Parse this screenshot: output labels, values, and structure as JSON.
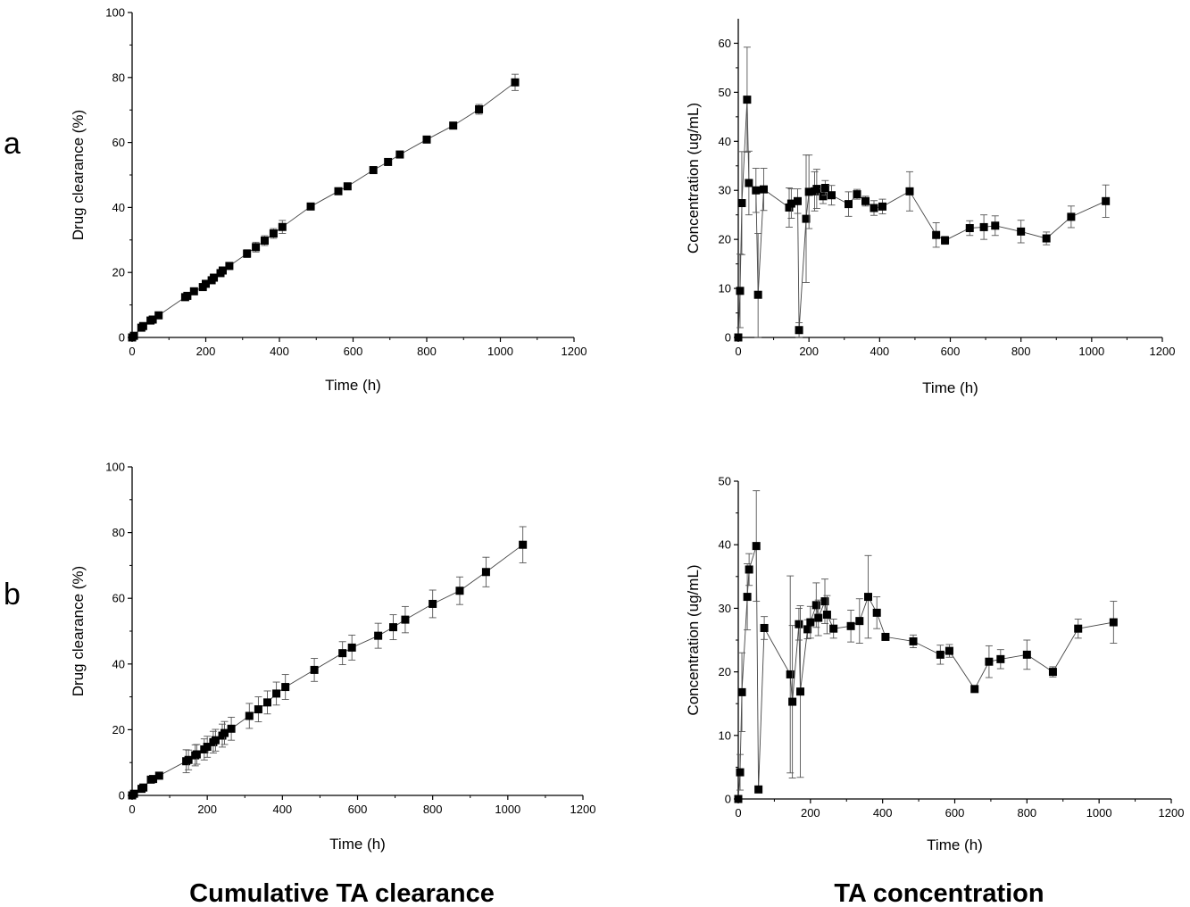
{
  "panel_letters": [
    "a",
    "b"
  ],
  "captions": {
    "left": "Cumulative TA clearance",
    "right": "TA concentration"
  },
  "chart_data": [
    {
      "id": "a-clearance",
      "type": "scatter",
      "xlabel": "Time (h)",
      "ylabel": "Drug clearance (%)",
      "xlim": [
        0,
        1200
      ],
      "ylim": [
        0,
        100
      ],
      "xticks": [
        0,
        200,
        400,
        600,
        800,
        1000,
        1200
      ],
      "yticks": [
        0,
        20,
        40,
        60,
        80,
        100
      ],
      "x": [
        0,
        5,
        25,
        30,
        50,
        56,
        72,
        144,
        150,
        168,
        192,
        200,
        216,
        222,
        240,
        246,
        264,
        312,
        336,
        360,
        384,
        408,
        485,
        560,
        585,
        655,
        695,
        727,
        800,
        872,
        942,
        1040
      ],
      "y": [
        0,
        0.5,
        3.0,
        3.5,
        5.2,
        5.5,
        6.8,
        12.4,
        12.8,
        14.2,
        15.5,
        16.5,
        17.6,
        18.4,
        19.8,
        20.6,
        22.0,
        25.8,
        27.8,
        29.8,
        32.0,
        34.0,
        40.3,
        45.0,
        46.5,
        51.5,
        54.0,
        56.3,
        60.9,
        65.2,
        70.2,
        78.5
      ],
      "err": [
        0,
        0.2,
        0.3,
        0.3,
        0.5,
        0.5,
        0.5,
        0.6,
        0.6,
        0.7,
        1.0,
        1.0,
        1.0,
        1.0,
        1.0,
        1.0,
        1.0,
        1.2,
        1.5,
        1.5,
        1.5,
        2.0,
        1.0,
        1.0,
        1.0,
        0.8,
        0.8,
        0.8,
        0.8,
        0.8,
        1.5,
        2.5
      ]
    },
    {
      "id": "a-concentration",
      "type": "scatter",
      "xlabel": "Time (h)",
      "ylabel": "Concentration (ug/mL)",
      "xlim": [
        0,
        1200
      ],
      "ylim": [
        0,
        65
      ],
      "xticks": [
        0,
        200,
        400,
        600,
        800,
        1000,
        1200
      ],
      "yticks": [
        0,
        10,
        20,
        30,
        40,
        50,
        60
      ],
      "x": [
        0,
        5,
        10,
        25,
        30,
        50,
        56,
        72,
        144,
        150,
        168,
        172,
        192,
        200,
        216,
        222,
        240,
        246,
        264,
        312,
        336,
        360,
        384,
        408,
        485,
        560,
        585,
        655,
        695,
        727,
        800,
        872,
        942,
        1040
      ],
      "y": [
        0,
        9.5,
        27.4,
        48.5,
        31.5,
        30.0,
        8.7,
        30.2,
        26.5,
        27.3,
        27.8,
        1.5,
        24.2,
        29.7,
        29.8,
        30.3,
        28.8,
        30.5,
        29.0,
        27.2,
        29.2,
        27.8,
        26.4,
        26.7,
        29.8,
        20.9,
        19.8,
        22.3,
        22.5,
        22.8,
        21.6,
        20.2,
        24.6,
        27.8
      ],
      "err": [
        0,
        7.5,
        10.5,
        10.7,
        6.5,
        4.5,
        12.5,
        4.3,
        4.0,
        3.0,
        2.5,
        1.5,
        13.0,
        7.5,
        4.0,
        4.0,
        1.5,
        1.5,
        2.0,
        2.5,
        1.0,
        1.0,
        1.5,
        1.5,
        4.0,
        2.5,
        0.8,
        1.5,
        2.5,
        2.0,
        2.3,
        1.3,
        2.2,
        3.3
      ]
    },
    {
      "id": "b-clearance",
      "type": "scatter",
      "xlabel": "Time (h)",
      "ylabel": "Drug clearance (%)",
      "xlim": [
        0,
        1200
      ],
      "ylim": [
        0,
        100
      ],
      "xticks": [
        0,
        200,
        400,
        600,
        800,
        1000,
        1200
      ],
      "yticks": [
        0,
        20,
        40,
        60,
        80,
        100
      ],
      "x": [
        0,
        5,
        25,
        30,
        50,
        56,
        72,
        144,
        150,
        168,
        172,
        192,
        200,
        216,
        222,
        240,
        246,
        264,
        312,
        336,
        360,
        384,
        408,
        485,
        560,
        585,
        655,
        695,
        727,
        800,
        872,
        942,
        1040
      ],
      "y": [
        0,
        0.5,
        2.0,
        2.4,
        4.8,
        5.0,
        6.0,
        10.4,
        10.8,
        12.2,
        12.5,
        14.0,
        14.8,
        16.2,
        16.8,
        18.2,
        19.0,
        20.3,
        24.2,
        26.2,
        28.3,
        31.0,
        33.0,
        38.2,
        43.3,
        45.0,
        48.6,
        51.2,
        53.5,
        58.3,
        62.3,
        68.0,
        76.3
      ],
      "err": [
        0,
        0.3,
        0.5,
        0.5,
        0.8,
        0.8,
        0.8,
        3.5,
        3.0,
        3.2,
        3.0,
        3.2,
        3.2,
        3.3,
        3.3,
        3.5,
        3.5,
        3.5,
        3.8,
        3.8,
        3.5,
        3.5,
        3.8,
        3.5,
        3.5,
        3.8,
        3.8,
        3.8,
        4.0,
        4.2,
        4.2,
        4.5,
        5.5
      ]
    },
    {
      "id": "b-concentration",
      "type": "scatter",
      "xlabel": "Time (h)",
      "ylabel": "Concentration (ug/mL)",
      "xlim": [
        0,
        1200
      ],
      "ylim": [
        0,
        50
      ],
      "xticks": [
        0,
        200,
        400,
        600,
        800,
        1000,
        1200
      ],
      "yticks": [
        0,
        10,
        20,
        30,
        40,
        50
      ],
      "x": [
        0,
        5,
        10,
        25,
        30,
        50,
        56,
        72,
        144,
        150,
        168,
        172,
        192,
        200,
        216,
        222,
        240,
        246,
        264,
        312,
        336,
        360,
        384,
        408,
        485,
        560,
        585,
        655,
        695,
        727,
        800,
        872,
        942,
        1040
      ],
      "y": [
        0,
        4.2,
        16.8,
        31.8,
        36.1,
        39.8,
        1.5,
        26.9,
        19.6,
        15.3,
        27.5,
        16.9,
        26.7,
        27.8,
        30.5,
        28.5,
        31.1,
        29.0,
        26.8,
        27.2,
        28.0,
        31.8,
        29.3,
        25.5,
        24.8,
        22.7,
        23.3,
        17.3,
        21.6,
        22.0,
        22.7,
        20.0,
        26.8,
        27.8
      ],
      "err": [
        0,
        2.8,
        6.2,
        5.2,
        2.5,
        8.7,
        0,
        1.8,
        15.5,
        12.0,
        2.5,
        13.5,
        1.5,
        2.5,
        3.5,
        2.8,
        3.5,
        3.0,
        1.5,
        2.5,
        3.5,
        6.5,
        2.5,
        0.3,
        1.0,
        1.5,
        1.0,
        0.3,
        2.5,
        1.5,
        2.3,
        0.8,
        1.5,
        3.3
      ]
    }
  ]
}
